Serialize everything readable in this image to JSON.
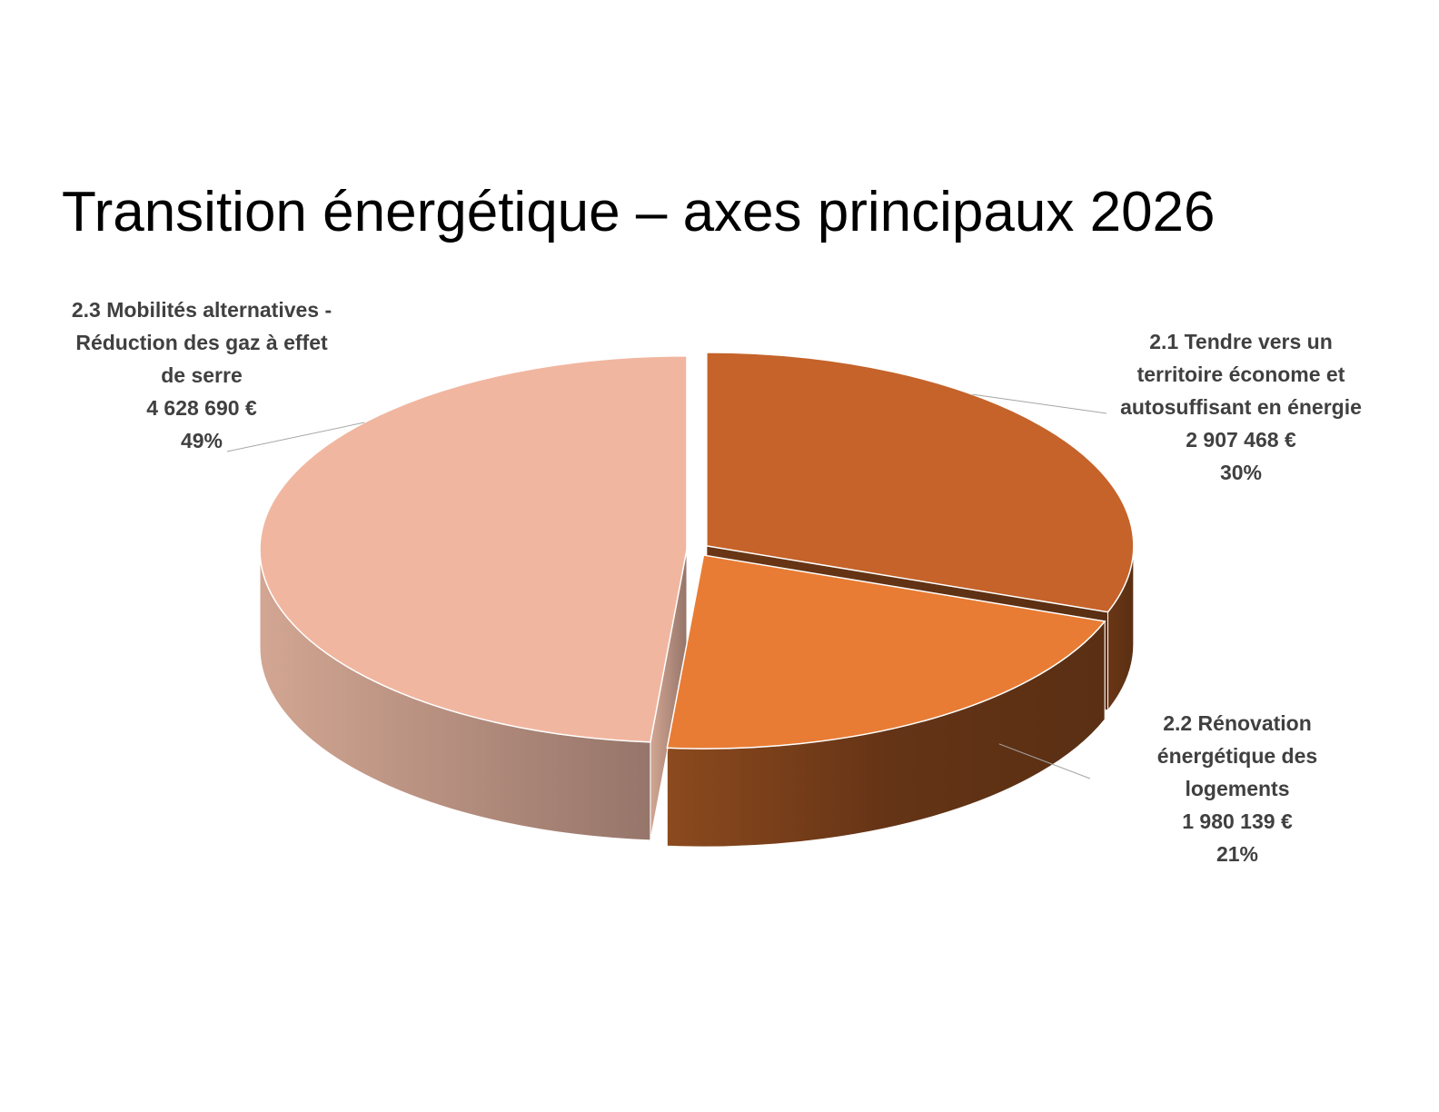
{
  "chart_data": {
    "type": "pie3d",
    "title": "Transition énergétique – axes principaux 2026",
    "categories": [
      "2.1 Tendre vers un territoire économe et autosuffisant en énergie",
      "2.2 Rénovation énergétique des logements",
      "2.3 Mobilités alternatives - Réduction des gaz à effet de serre"
    ],
    "values": [
      2907468,
      1980139,
      4628690
    ],
    "value_labels": [
      "2 907 468 €",
      "1 980 139 €",
      "4 628 690 €"
    ],
    "percents": [
      30,
      21,
      49
    ],
    "percent_labels": [
      "30%",
      "21%",
      "49%"
    ],
    "colors": [
      "#C5632A",
      "#E87C34",
      "#F1B6A0"
    ]
  }
}
